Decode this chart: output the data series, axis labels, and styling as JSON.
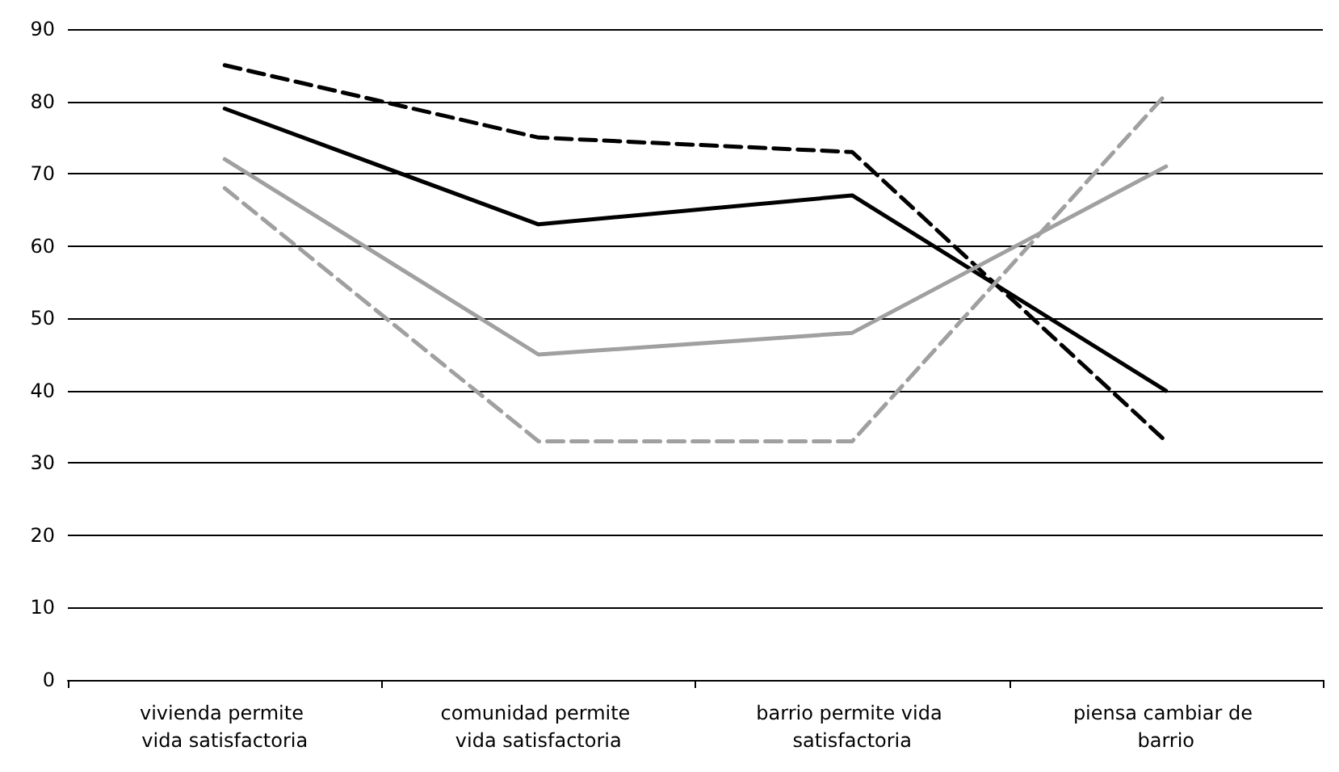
{
  "chart_data": {
    "type": "line",
    "categories": [
      "vivienda permite vida satisfactoria",
      "comunidad permite vida satisfactoria",
      "barrio permite vida satisfactoria",
      "piensa cambiar de barrio"
    ],
    "series": [
      {
        "color": "#000000",
        "line_style": "dashed",
        "values": [
          85,
          75,
          73,
          33
        ]
      },
      {
        "color": "#000000",
        "line_style": "solid",
        "values": [
          79,
          63,
          67,
          40
        ]
      },
      {
        "color": "#a0a0a0",
        "line_style": "solid",
        "values": [
          72,
          45,
          48,
          71
        ]
      },
      {
        "color": "#a0a0a0",
        "line_style": "dashed",
        "values": [
          68,
          33,
          33,
          81
        ]
      }
    ],
    "ylim": [
      0,
      90
    ],
    "yticks": [
      0,
      10,
      20,
      30,
      40,
      50,
      60,
      70,
      80,
      90
    ],
    "grid": "y",
    "marker": "none"
  }
}
